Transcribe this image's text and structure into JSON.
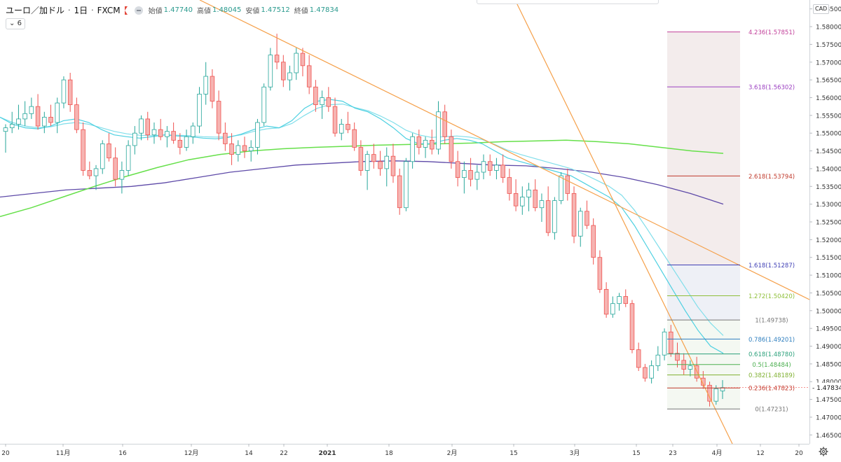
{
  "header": {
    "symbol": "ユーロ／加ドル",
    "interval": "1日",
    "source": "FXCM",
    "open_label": "始値",
    "open": "1.47740",
    "high_label": "高値",
    "high": "1.48045",
    "low_label": "安値",
    "low": "1.47512",
    "close_label": "終値",
    "close": "1.47834",
    "indicator_count": "6"
  },
  "currency_label": "CAD",
  "colors": {
    "up": "#26a69a",
    "down": "#ef5350",
    "ema_fast": "#4dd0e1",
    "ema_slow": "#80deea",
    "ma_long": "#66e04a",
    "ma_longer": "#5e4aa8",
    "trendline": "#f5a04a",
    "price_tag": "#ef5350"
  },
  "chart_data": {
    "type": "candlestick",
    "ylim": [
      1.4625,
      1.5875
    ],
    "yticks": [
      "1.58500",
      "1.58000",
      "1.57500",
      "1.57000",
      "1.56500",
      "1.56000",
      "1.55500",
      "1.55000",
      "1.54500",
      "1.54000",
      "1.53500",
      "1.53000",
      "1.52500",
      "1.52000",
      "1.51500",
      "1.51000",
      "1.50500",
      "1.50000",
      "1.49500",
      "1.49000",
      "1.48500",
      "1.48000",
      "1.47500",
      "1.47000",
      "1.46500"
    ],
    "xticks": [
      "20",
      "11月",
      "16",
      "12月",
      "14",
      "22",
      "2021",
      "18",
      "2月",
      "15",
      "3月",
      "15",
      "23",
      "4月",
      "12",
      "20"
    ],
    "last_price": "1.47834",
    "candles": [
      [
        1.5505,
        1.5525,
        1.5445,
        1.5515
      ],
      [
        1.5515,
        1.556,
        1.55,
        1.5525
      ],
      [
        1.5525,
        1.558,
        1.551,
        1.554
      ],
      [
        1.554,
        1.559,
        1.552,
        1.5555
      ],
      [
        1.5555,
        1.56,
        1.554,
        1.5575
      ],
      [
        1.5575,
        1.561,
        1.551,
        1.552
      ],
      [
        1.552,
        1.556,
        1.55,
        1.5545
      ],
      [
        1.5545,
        1.558,
        1.552,
        1.553
      ],
      [
        1.553,
        1.56,
        1.55,
        1.5585
      ],
      [
        1.5585,
        1.566,
        1.557,
        1.565
      ],
      [
        1.565,
        1.567,
        1.556,
        1.558
      ],
      [
        1.558,
        1.56,
        1.55,
        1.551
      ],
      [
        1.551,
        1.553,
        1.538,
        1.5395
      ],
      [
        1.5395,
        1.542,
        1.537,
        1.538
      ],
      [
        1.538,
        1.541,
        1.534,
        1.54
      ],
      [
        1.54,
        1.548,
        1.5385,
        1.547
      ],
      [
        1.547,
        1.55,
        1.542,
        1.543
      ],
      [
        1.543,
        1.546,
        1.535,
        1.537
      ],
      [
        1.537,
        1.542,
        1.533,
        1.5395
      ],
      [
        1.5395,
        1.548,
        1.538,
        1.5465
      ],
      [
        1.5465,
        1.552,
        1.544,
        1.55
      ],
      [
        1.55,
        1.555,
        1.548,
        1.554
      ],
      [
        1.554,
        1.556,
        1.548,
        1.5495
      ],
      [
        1.5495,
        1.553,
        1.547,
        1.551
      ],
      [
        1.551,
        1.554,
        1.548,
        1.549
      ],
      [
        1.549,
        1.552,
        1.546,
        1.5505
      ],
      [
        1.5505,
        1.553,
        1.547,
        1.548
      ],
      [
        1.548,
        1.55,
        1.544,
        1.546
      ],
      [
        1.546,
        1.551,
        1.545,
        1.549
      ],
      [
        1.549,
        1.553,
        1.547,
        1.552
      ],
      [
        1.552,
        1.563,
        1.55,
        1.561
      ],
      [
        1.561,
        1.57,
        1.558,
        1.566
      ],
      [
        1.566,
        1.568,
        1.557,
        1.559
      ],
      [
        1.559,
        1.562,
        1.548,
        1.55
      ],
      [
        1.55,
        1.553,
        1.545,
        1.547
      ],
      [
        1.547,
        1.55,
        1.541,
        1.544
      ],
      [
        1.544,
        1.548,
        1.542,
        1.5465
      ],
      [
        1.5465,
        1.549,
        1.543,
        1.545
      ],
      [
        1.545,
        1.548,
        1.542,
        1.546
      ],
      [
        1.546,
        1.554,
        1.544,
        1.553
      ],
      [
        1.553,
        1.564,
        1.552,
        1.563
      ],
      [
        1.563,
        1.574,
        1.562,
        1.572
      ],
      [
        1.572,
        1.578,
        1.568,
        1.57
      ],
      [
        1.57,
        1.572,
        1.563,
        1.565
      ],
      [
        1.565,
        1.569,
        1.562,
        1.567
      ],
      [
        1.567,
        1.574,
        1.565,
        1.5725
      ],
      [
        1.5725,
        1.574,
        1.566,
        1.569
      ],
      [
        1.569,
        1.572,
        1.561,
        1.563
      ],
      [
        1.563,
        1.565,
        1.556,
        1.558
      ],
      [
        1.558,
        1.562,
        1.554,
        1.56
      ],
      [
        1.56,
        1.563,
        1.556,
        1.5575
      ],
      [
        1.5575,
        1.56,
        1.549,
        1.55
      ],
      [
        1.55,
        1.554,
        1.548,
        1.5525
      ],
      [
        1.5525,
        1.556,
        1.55,
        1.551
      ],
      [
        1.551,
        1.553,
        1.545,
        1.546
      ],
      [
        1.546,
        1.548,
        1.538,
        1.5395
      ],
      [
        1.5395,
        1.545,
        1.534,
        1.544
      ],
      [
        1.544,
        1.547,
        1.54,
        1.542
      ],
      [
        1.542,
        1.545,
        1.538,
        1.54
      ],
      [
        1.54,
        1.546,
        1.535,
        1.5435
      ],
      [
        1.5435,
        1.547,
        1.536,
        1.538
      ],
      [
        1.538,
        1.54,
        1.527,
        1.529
      ],
      [
        1.529,
        1.543,
        1.528,
        1.542
      ],
      [
        1.542,
        1.55,
        1.54,
        1.549
      ],
      [
        1.549,
        1.551,
        1.544,
        1.546
      ],
      [
        1.546,
        1.549,
        1.543,
        1.548
      ],
      [
        1.548,
        1.551,
        1.544,
        1.5455
      ],
      [
        1.5455,
        1.559,
        1.544,
        1.556
      ],
      [
        1.556,
        1.558,
        1.547,
        1.549
      ],
      [
        1.549,
        1.551,
        1.54,
        1.542
      ],
      [
        1.542,
        1.545,
        1.535,
        1.5375
      ],
      [
        1.5375,
        1.542,
        1.533,
        1.5395
      ],
      [
        1.5395,
        1.543,
        1.535,
        1.537
      ],
      [
        1.537,
        1.541,
        1.534,
        1.539
      ],
      [
        1.539,
        1.544,
        1.537,
        1.542
      ],
      [
        1.542,
        1.544,
        1.538,
        1.5395
      ],
      [
        1.5395,
        1.543,
        1.537,
        1.541
      ],
      [
        1.541,
        1.544,
        1.536,
        1.5375
      ],
      [
        1.5375,
        1.54,
        1.531,
        1.533
      ],
      [
        1.533,
        1.537,
        1.528,
        1.5295
      ],
      [
        1.5295,
        1.535,
        1.527,
        1.532
      ],
      [
        1.532,
        1.536,
        1.528,
        1.534
      ],
      [
        1.534,
        1.537,
        1.528,
        1.529
      ],
      [
        1.529,
        1.533,
        1.525,
        1.531
      ],
      [
        1.531,
        1.535,
        1.521,
        1.522
      ],
      [
        1.522,
        1.532,
        1.52,
        1.531
      ],
      [
        1.531,
        1.539,
        1.53,
        1.538
      ],
      [
        1.538,
        1.54,
        1.531,
        1.533
      ],
      [
        1.533,
        1.535,
        1.519,
        1.521
      ],
      [
        1.521,
        1.529,
        1.518,
        1.528
      ],
      [
        1.528,
        1.531,
        1.523,
        1.524
      ],
      [
        1.524,
        1.526,
        1.513,
        1.515
      ],
      [
        1.515,
        1.517,
        1.505,
        1.506
      ],
      [
        1.506,
        1.508,
        1.498,
        1.499
      ],
      [
        1.499,
        1.504,
        1.498,
        1.502
      ],
      [
        1.502,
        1.505,
        1.5,
        1.504
      ],
      [
        1.504,
        1.506,
        1.501,
        1.502
      ],
      [
        1.502,
        1.503,
        1.488,
        1.489
      ],
      [
        1.489,
        1.491,
        1.483,
        1.484
      ],
      [
        1.484,
        1.485,
        1.48,
        1.481
      ],
      [
        1.481,
        1.486,
        1.4795,
        1.4845
      ],
      [
        1.4845,
        1.49,
        1.483,
        1.4875
      ],
      [
        1.4875,
        1.495,
        1.486,
        1.494
      ],
      [
        1.494,
        1.496,
        1.487,
        1.488
      ],
      [
        1.488,
        1.491,
        1.484,
        1.486
      ],
      [
        1.486,
        1.488,
        1.482,
        1.4835
      ],
      [
        1.4835,
        1.486,
        1.4815,
        1.4845
      ],
      [
        1.4845,
        1.487,
        1.48,
        1.481
      ],
      [
        1.481,
        1.483,
        1.478,
        1.479
      ],
      [
        1.479,
        1.48,
        1.473,
        1.4745
      ],
      [
        1.4745,
        1.479,
        1.4735,
        1.478
      ],
      [
        1.4774,
        1.48045,
        1.47512,
        1.47834
      ]
    ],
    "overlays": {
      "ema_fast": [
        1.5545,
        1.5525,
        1.5515,
        1.5512,
        1.552,
        1.5535,
        1.554,
        1.553,
        1.551,
        1.5495,
        1.549,
        1.5486,
        1.549,
        1.5495,
        1.5492,
        1.549,
        1.5486,
        1.5484,
        1.5488,
        1.5497,
        1.551,
        1.552,
        1.5515,
        1.5535,
        1.557,
        1.559,
        1.5595,
        1.559,
        1.557,
        1.556,
        1.554,
        1.5515,
        1.5485,
        1.547,
        1.547,
        1.548,
        1.5485,
        1.548,
        1.547,
        1.545,
        1.543,
        1.542,
        1.541,
        1.54,
        1.539,
        1.538,
        1.536,
        1.534,
        1.532,
        1.529,
        1.524,
        1.518,
        1.512,
        1.506,
        1.5,
        1.4945,
        1.49,
        1.488
      ],
      "ema_slow": [
        1.5545,
        1.553,
        1.552,
        1.5515,
        1.5518,
        1.5526,
        1.553,
        1.5525,
        1.5515,
        1.5505,
        1.5498,
        1.5494,
        1.5493,
        1.5495,
        1.5494,
        1.5493,
        1.549,
        1.5489,
        1.549,
        1.5495,
        1.5505,
        1.5512,
        1.5515,
        1.5527,
        1.555,
        1.557,
        1.558,
        1.5582,
        1.5572,
        1.5563,
        1.5548,
        1.553,
        1.5508,
        1.5495,
        1.5488,
        1.549,
        1.5492,
        1.5489,
        1.5482,
        1.5468,
        1.5452,
        1.544,
        1.543,
        1.542,
        1.541,
        1.54,
        1.5385,
        1.5368,
        1.535,
        1.5325,
        1.5283,
        1.523,
        1.5175,
        1.512,
        1.5065,
        1.501,
        1.4965,
        1.493
      ],
      "ma_long": [
        1.5265,
        1.529,
        1.532,
        1.535,
        1.5378,
        1.5403,
        1.5425,
        1.544,
        1.545,
        1.5456,
        1.546,
        1.5463,
        1.5466,
        1.5468,
        1.547,
        1.5472,
        1.5476,
        1.5478,
        1.548,
        1.5476,
        1.547,
        1.546,
        1.545,
        1.5443
      ],
      "ma_longer": [
        1.532,
        1.533,
        1.534,
        1.5345,
        1.535,
        1.536,
        1.5375,
        1.539,
        1.54,
        1.541,
        1.5415,
        1.542,
        1.5422,
        1.542,
        1.5415,
        1.541,
        1.5408,
        1.54,
        1.539,
        1.5375,
        1.5355,
        1.533,
        1.53
      ]
    },
    "trendlines": [
      {
        "from": [
          "Oct 28",
          1.5905
        ],
        "to": [
          "Apr 14",
          1.5055
        ]
      },
      {
        "from": [
          "Feb 16",
          1.597
        ],
        "to": [
          "Apr 7",
          1.4625
        ]
      }
    ],
    "fibonacci": {
      "levels": [
        {
          "label": "4.236(1.57851)",
          "value": 1.57851,
          "color": "#c2409a"
        },
        {
          "label": "3.618(1.56302)",
          "value": 1.56302,
          "color": "#9b3fc1"
        },
        {
          "label": "2.618(1.53794)",
          "value": 1.53794,
          "color": "#c0392b"
        },
        {
          "label": "1.618(1.51287)",
          "value": 1.51287,
          "color": "#3f3fb5"
        },
        {
          "label": "1.272(1.50420)",
          "value": 1.5042,
          "color": "#8fbf3a"
        },
        {
          "label": "1(1.49738)",
          "value": 1.49738,
          "color": "#777777"
        },
        {
          "label": "0.786(1.49201)",
          "value": 1.49201,
          "color": "#2f7fbf"
        },
        {
          "label": "0.618(1.48780)",
          "value": 1.4878,
          "color": "#2aa07a"
        },
        {
          "label": "0.5(1.48484)",
          "value": 1.48484,
          "color": "#4caf50"
        },
        {
          "label": "0.382(1.48189)",
          "value": 1.48189,
          "color": "#7fb030"
        },
        {
          "label": "0.236(1.47823)",
          "value": 1.47823,
          "color": "#c0392b"
        },
        {
          "label": "0(1.47231)",
          "value": 1.47231,
          "color": "#777777"
        }
      ]
    }
  }
}
